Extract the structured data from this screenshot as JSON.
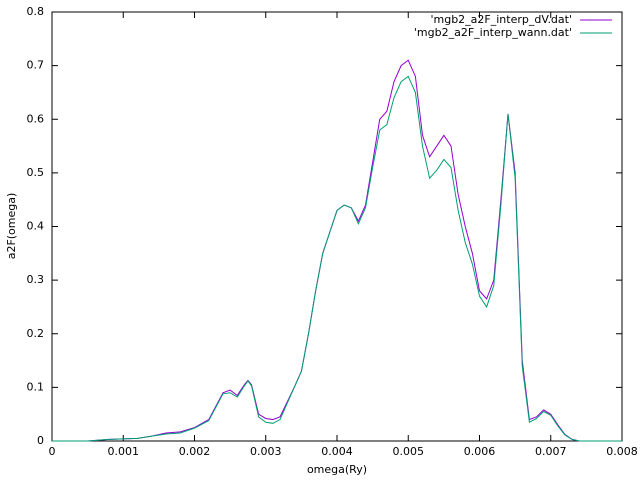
{
  "chart_data": {
    "type": "line",
    "xlabel": "omega(Ry)",
    "ylabel": "a2F(omega)",
    "x": [
      0,
      0.0005,
      0.0008,
      0.001,
      0.0012,
      0.0014,
      0.0016,
      0.0018,
      0.002,
      0.0022,
      0.0024,
      0.0025,
      0.0026,
      0.0027,
      0.00275,
      0.0028,
      0.0029,
      0.003,
      0.0031,
      0.0032,
      0.0034,
      0.0035,
      0.0036,
      0.0037,
      0.0038,
      0.0039,
      0.004,
      0.0041,
      0.0042,
      0.0043,
      0.0044,
      0.0045,
      0.0046,
      0.0047,
      0.0048,
      0.0049,
      0.005,
      0.0051,
      0.0052,
      0.0053,
      0.0054,
      0.0055,
      0.0056,
      0.0057,
      0.0058,
      0.0059,
      0.006,
      0.0061,
      0.0062,
      0.0063,
      0.0064,
      0.0065,
      0.0066,
      0.0067,
      0.0068,
      0.0069,
      0.007,
      0.0071,
      0.0072,
      0.0073,
      0.0074,
      0.008
    ],
    "series": [
      {
        "name": "'mgb2_a2F_interp_dV.dat'",
        "color": "#9400d3",
        "values": [
          0,
          0,
          0.003,
          0.004,
          0.005,
          0.009,
          0.015,
          0.017,
          0.025,
          0.04,
          0.09,
          0.095,
          0.085,
          0.105,
          0.113,
          0.105,
          0.05,
          0.042,
          0.04,
          0.045,
          0.1,
          0.13,
          0.2,
          0.28,
          0.35,
          0.39,
          0.43,
          0.44,
          0.435,
          0.41,
          0.44,
          0.52,
          0.6,
          0.615,
          0.67,
          0.7,
          0.71,
          0.68,
          0.57,
          0.53,
          0.55,
          0.57,
          0.55,
          0.46,
          0.4,
          0.35,
          0.28,
          0.265,
          0.3,
          0.45,
          0.61,
          0.5,
          0.15,
          0.04,
          0.045,
          0.058,
          0.05,
          0.03,
          0.012,
          0.003,
          0,
          0
        ]
      },
      {
        "name": "'mgb2_a2F_interp_wann.dat'",
        "color": "#009e73",
        "values": [
          0,
          0,
          0.003,
          0.004,
          0.005,
          0.009,
          0.013,
          0.015,
          0.024,
          0.038,
          0.088,
          0.09,
          0.082,
          0.103,
          0.112,
          0.103,
          0.045,
          0.035,
          0.033,
          0.04,
          0.1,
          0.13,
          0.2,
          0.28,
          0.35,
          0.39,
          0.43,
          0.44,
          0.435,
          0.405,
          0.435,
          0.51,
          0.58,
          0.59,
          0.64,
          0.67,
          0.68,
          0.65,
          0.55,
          0.49,
          0.505,
          0.525,
          0.51,
          0.43,
          0.37,
          0.33,
          0.27,
          0.25,
          0.29,
          0.44,
          0.61,
          0.49,
          0.14,
          0.035,
          0.042,
          0.055,
          0.048,
          0.028,
          0.011,
          0.003,
          0,
          0
        ]
      }
    ],
    "xlim": [
      0,
      0.008
    ],
    "xticks": [
      0,
      0.001,
      0.002,
      0.003,
      0.004,
      0.005,
      0.006,
      0.007,
      0.008
    ],
    "ylim": [
      0,
      0.8
    ],
    "yticks": [
      0,
      0.1,
      0.2,
      0.3,
      0.4,
      0.5,
      0.6,
      0.7,
      0.8
    ],
    "legend": "top-right"
  }
}
